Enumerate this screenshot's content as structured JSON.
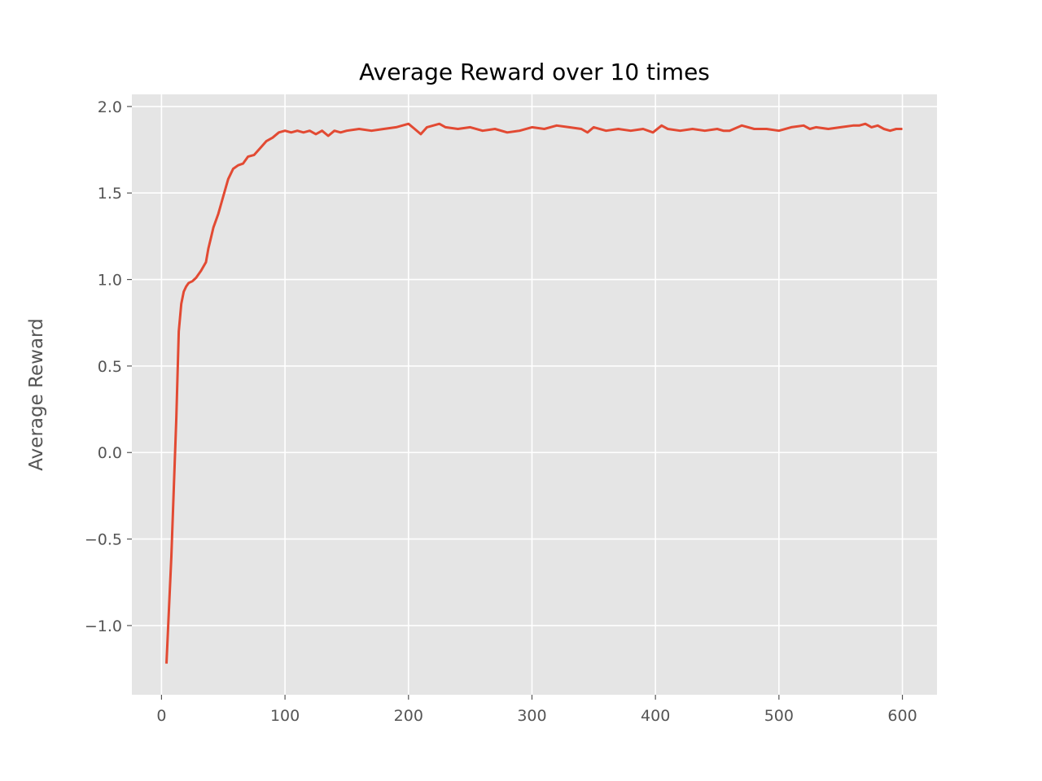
{
  "chart_data": {
    "type": "line",
    "title": "Average Reward over 10 times",
    "xlabel": "",
    "ylabel": "Average Reward",
    "xlim": [
      -24,
      628
    ],
    "ylim": [
      -1.4,
      2.07
    ],
    "x_ticks": [
      0,
      100,
      200,
      300,
      400,
      500,
      600
    ],
    "x_tick_labels": [
      "0",
      "100",
      "200",
      "300",
      "400",
      "500",
      "600"
    ],
    "y_ticks": [
      -1.0,
      -0.5,
      0.0,
      0.5,
      1.0,
      1.5,
      2.0
    ],
    "y_tick_labels": [
      "−1.0",
      "−0.5",
      "0.0",
      "0.5",
      "1.0",
      "1.5",
      "2.0"
    ],
    "grid": true,
    "background_color": "#e5e5e5",
    "grid_color": "#ffffff",
    "series": [
      {
        "color": "#e24a33",
        "points": [
          [
            4,
            -1.22
          ],
          [
            8,
            -0.6
          ],
          [
            12,
            0.2
          ],
          [
            14,
            0.7
          ],
          [
            16,
            0.86
          ],
          [
            18,
            0.93
          ],
          [
            20,
            0.96
          ],
          [
            22,
            0.98
          ],
          [
            25,
            0.99
          ],
          [
            28,
            1.01
          ],
          [
            32,
            1.05
          ],
          [
            36,
            1.1
          ],
          [
            38,
            1.18
          ],
          [
            40,
            1.24
          ],
          [
            42,
            1.3
          ],
          [
            46,
            1.38
          ],
          [
            50,
            1.48
          ],
          [
            54,
            1.58
          ],
          [
            58,
            1.64
          ],
          [
            62,
            1.66
          ],
          [
            66,
            1.67
          ],
          [
            70,
            1.71
          ],
          [
            75,
            1.72
          ],
          [
            80,
            1.76
          ],
          [
            85,
            1.8
          ],
          [
            90,
            1.82
          ],
          [
            95,
            1.85
          ],
          [
            100,
            1.86
          ],
          [
            105,
            1.85
          ],
          [
            110,
            1.86
          ],
          [
            115,
            1.85
          ],
          [
            120,
            1.86
          ],
          [
            125,
            1.84
          ],
          [
            130,
            1.86
          ],
          [
            135,
            1.83
          ],
          [
            140,
            1.86
          ],
          [
            145,
            1.85
          ],
          [
            150,
            1.86
          ],
          [
            160,
            1.87
          ],
          [
            170,
            1.86
          ],
          [
            180,
            1.87
          ],
          [
            190,
            1.88
          ],
          [
            200,
            1.9
          ],
          [
            205,
            1.87
          ],
          [
            210,
            1.84
          ],
          [
            215,
            1.88
          ],
          [
            220,
            1.89
          ],
          [
            225,
            1.9
          ],
          [
            230,
            1.88
          ],
          [
            240,
            1.87
          ],
          [
            250,
            1.88
          ],
          [
            260,
            1.86
          ],
          [
            270,
            1.87
          ],
          [
            280,
            1.85
          ],
          [
            290,
            1.86
          ],
          [
            300,
            1.88
          ],
          [
            310,
            1.87
          ],
          [
            320,
            1.89
          ],
          [
            330,
            1.88
          ],
          [
            340,
            1.87
          ],
          [
            345,
            1.85
          ],
          [
            350,
            1.88
          ],
          [
            360,
            1.86
          ],
          [
            370,
            1.87
          ],
          [
            380,
            1.86
          ],
          [
            390,
            1.87
          ],
          [
            398,
            1.85
          ],
          [
            405,
            1.89
          ],
          [
            410,
            1.87
          ],
          [
            420,
            1.86
          ],
          [
            430,
            1.87
          ],
          [
            440,
            1.86
          ],
          [
            450,
            1.87
          ],
          [
            455,
            1.86
          ],
          [
            460,
            1.86
          ],
          [
            470,
            1.89
          ],
          [
            480,
            1.87
          ],
          [
            490,
            1.87
          ],
          [
            500,
            1.86
          ],
          [
            510,
            1.88
          ],
          [
            520,
            1.89
          ],
          [
            525,
            1.87
          ],
          [
            530,
            1.88
          ],
          [
            540,
            1.87
          ],
          [
            550,
            1.88
          ],
          [
            560,
            1.89
          ],
          [
            565,
            1.89
          ],
          [
            570,
            1.9
          ],
          [
            575,
            1.88
          ],
          [
            580,
            1.89
          ],
          [
            585,
            1.87
          ],
          [
            590,
            1.86
          ],
          [
            595,
            1.87
          ],
          [
            600,
            1.87
          ]
        ]
      }
    ]
  }
}
